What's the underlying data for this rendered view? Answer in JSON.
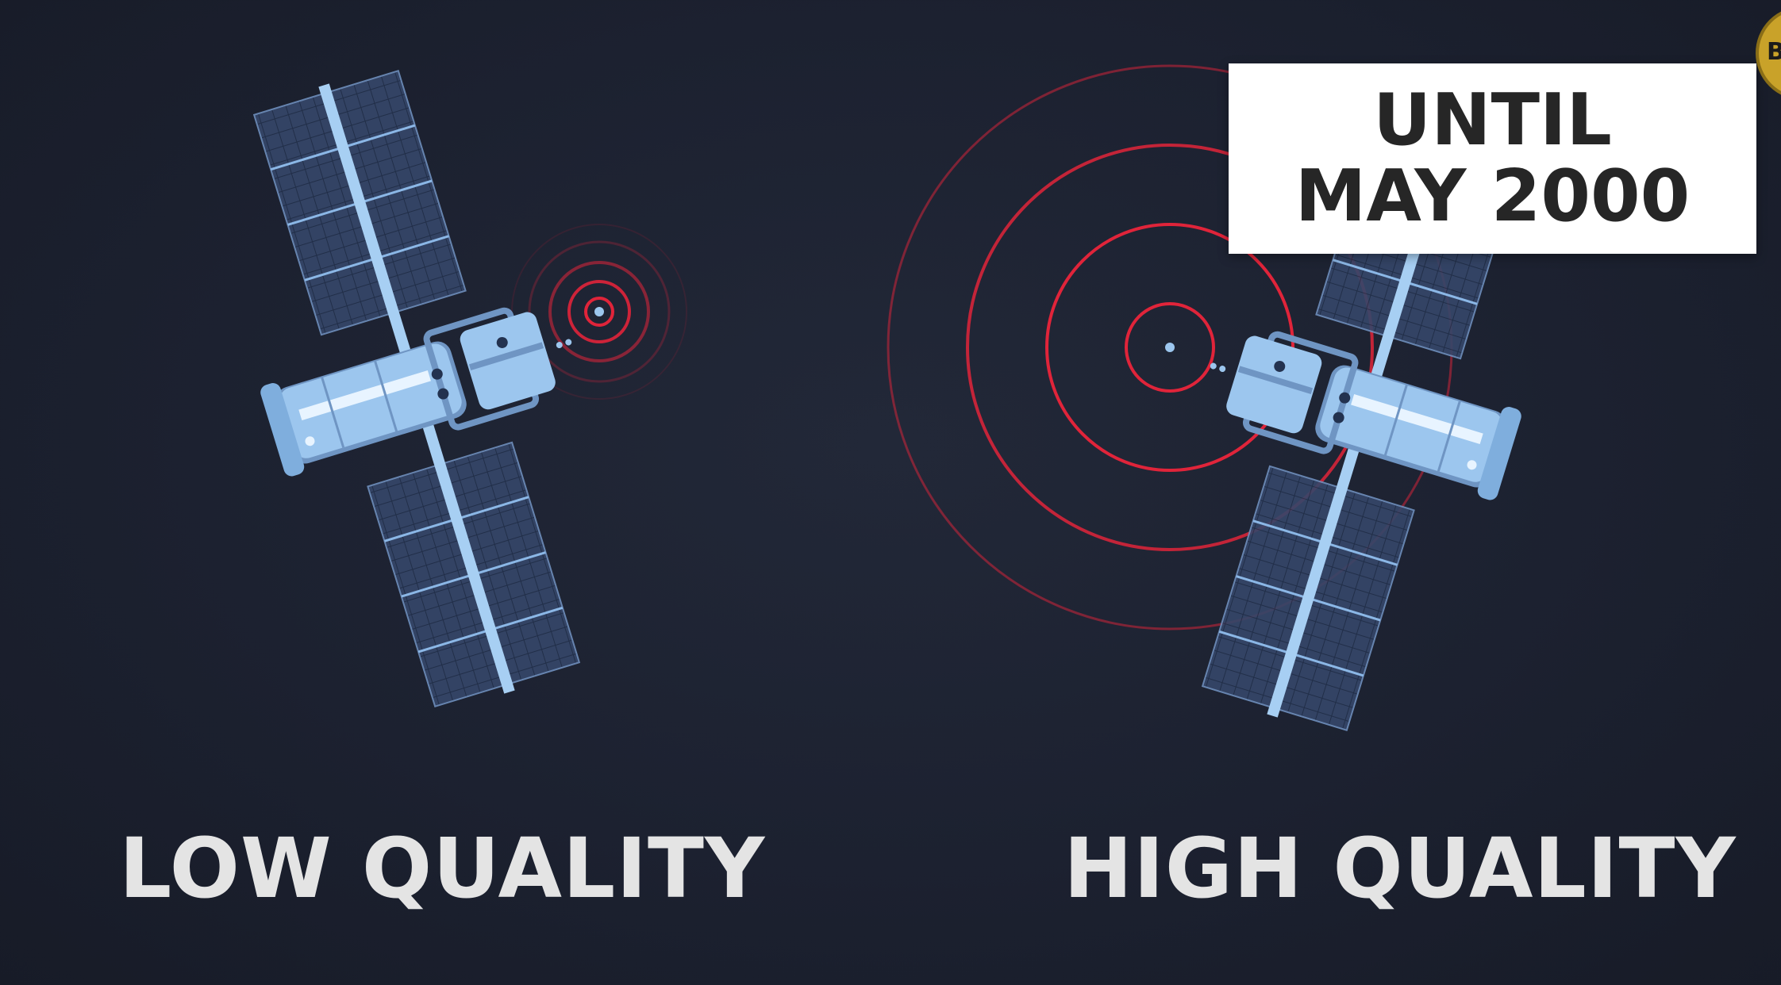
{
  "captions": {
    "left": "LOW QUALITY",
    "right": "HIGH QUALITY"
  },
  "date_card": {
    "line1": "UNTIL",
    "line2": "MAY 2000"
  },
  "corner_badge": {
    "text": "B"
  },
  "colors": {
    "background": "#1c2130",
    "signal": "#e0243a",
    "satellite_body": "#9cc6ee",
    "solar_panel": "#3a4a6b",
    "caption_text": "#e4e4e4",
    "card_text": "#262626"
  },
  "icons": {
    "left_satellite": "satellite-icon",
    "right_satellite": "satellite-icon",
    "left_signal": "signal-waves-icon",
    "right_signal": "signal-waves-icon"
  }
}
